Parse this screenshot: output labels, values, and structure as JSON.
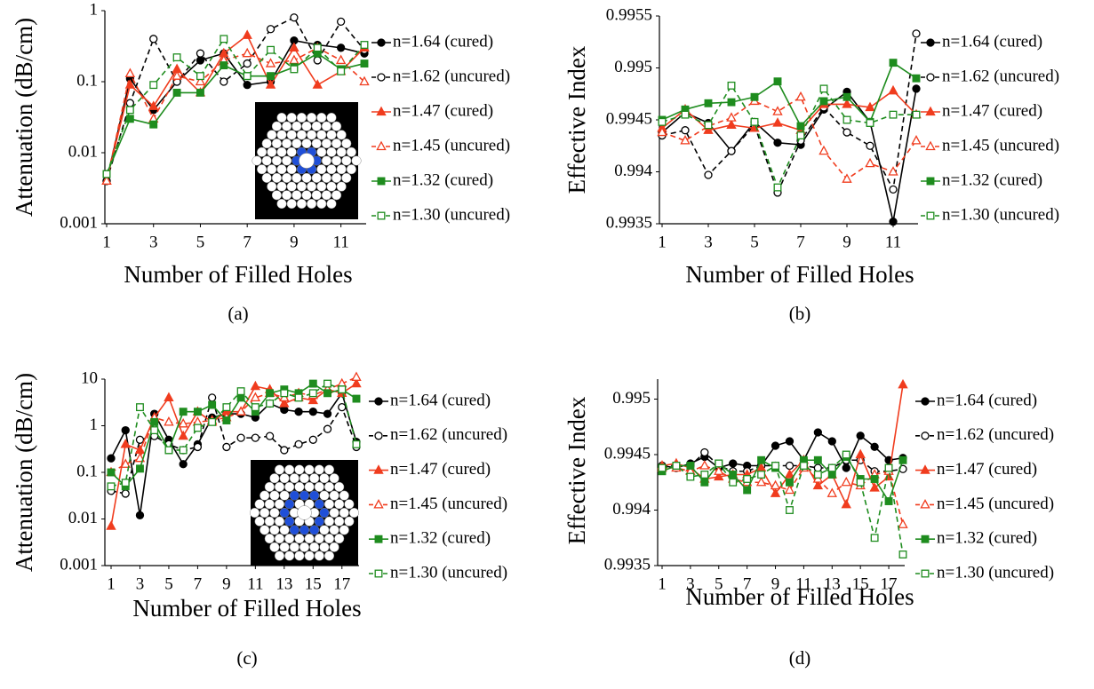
{
  "chart_data": [
    {
      "type": "line",
      "caption": "(a)",
      "x_label": "Number of Filled Holes",
      "y_label": "Attenuation (dB/cm)",
      "log_y": true,
      "x": [
        1,
        2,
        3,
        4,
        5,
        6,
        7,
        8,
        9,
        10,
        11,
        12
      ],
      "xlim": [
        1,
        12
      ],
      "xticks": [
        1,
        3,
        5,
        7,
        9,
        11
      ],
      "ylim": [
        0.001,
        1
      ],
      "yticks": [
        0.001,
        0.01,
        0.1,
        1
      ],
      "series": [
        {
          "name": "n=1.64 (cured)",
          "color": "#000000",
          "dashed": false,
          "marker": "circle",
          "filled": true,
          "values": [
            0.004,
            0.11,
            0.04,
            0.1,
            0.2,
            0.25,
            0.09,
            0.1,
            0.38,
            0.33,
            0.3,
            0.25
          ]
        },
        {
          "name": "n=1.62 (uncured)",
          "color": "#000000",
          "dashed": true,
          "marker": "circle",
          "filled": false,
          "values": [
            0.004,
            0.05,
            0.4,
            0.1,
            0.25,
            0.1,
            0.18,
            0.55,
            0.8,
            0.2,
            0.7,
            0.28
          ]
        },
        {
          "name": "n=1.47 (cured)",
          "color": "#f03c1e",
          "dashed": false,
          "marker": "triangle",
          "filled": true,
          "values": [
            0.004,
            0.09,
            0.045,
            0.15,
            0.07,
            0.25,
            0.45,
            0.09,
            0.3,
            0.09,
            0.14,
            0.3
          ]
        },
        {
          "name": "n=1.45 (uncured)",
          "color": "#f03c1e",
          "dashed": true,
          "marker": "triangle",
          "filled": false,
          "values": [
            0.004,
            0.13,
            0.03,
            0.12,
            0.1,
            0.2,
            0.25,
            0.18,
            0.2,
            0.3,
            0.2,
            0.1
          ]
        },
        {
          "name": "n=1.32 (cured)",
          "color": "#1e8c1e",
          "dashed": false,
          "marker": "square",
          "filled": true,
          "values": [
            0.005,
            0.03,
            0.025,
            0.07,
            0.07,
            0.17,
            0.12,
            0.12,
            0.16,
            0.25,
            0.15,
            0.18
          ]
        },
        {
          "name": "n=1.30 (uncured)",
          "color": "#1e8c1e",
          "dashed": true,
          "marker": "square",
          "filled": false,
          "values": [
            0.005,
            0.04,
            0.09,
            0.22,
            0.12,
            0.4,
            0.12,
            0.28,
            0.15,
            0.3,
            0.14,
            0.33
          ]
        }
      ]
    },
    {
      "type": "line",
      "caption": "(b)",
      "x_label": "Number of Filled Holes",
      "y_label": "Effective Index",
      "log_y": false,
      "x": [
        1,
        2,
        3,
        4,
        5,
        6,
        7,
        8,
        9,
        10,
        11,
        12
      ],
      "xlim": [
        1,
        12
      ],
      "xticks": [
        1,
        3,
        5,
        7,
        9,
        11
      ],
      "ylim": [
        0.9935,
        0.9955
      ],
      "yticks": [
        0.9935,
        0.994,
        0.9945,
        0.995,
        0.9955
      ],
      "series": [
        {
          "name": "n=1.64 (cured)",
          "color": "#000000",
          "dashed": false,
          "marker": "circle",
          "filled": true,
          "values": [
            0.99438,
            0.99457,
            0.99447,
            0.9942,
            0.99448,
            0.99428,
            0.99426,
            0.9946,
            0.99477,
            0.99448,
            0.99352,
            0.9948
          ]
        },
        {
          "name": "n=1.62 (uncured)",
          "color": "#000000",
          "dashed": true,
          "marker": "circle",
          "filled": false,
          "values": [
            0.99435,
            0.9944,
            0.99397,
            0.9942,
            0.99445,
            0.9938,
            0.9943,
            0.99462,
            0.99438,
            0.99425,
            0.99383,
            0.99533
          ]
        },
        {
          "name": "n=1.47 (cured)",
          "color": "#f03c1e",
          "dashed": false,
          "marker": "triangle",
          "filled": true,
          "values": [
            0.99442,
            0.9946,
            0.9944,
            0.99445,
            0.99442,
            0.99447,
            0.9944,
            0.99465,
            0.99465,
            0.99462,
            0.99478,
            0.99455
          ]
        },
        {
          "name": "n=1.45 (uncured)",
          "color": "#f03c1e",
          "dashed": true,
          "marker": "triangle",
          "filled": false,
          "values": [
            0.99438,
            0.9943,
            0.99444,
            0.99452,
            0.99468,
            0.99458,
            0.99472,
            0.9942,
            0.99393,
            0.99408,
            0.994,
            0.9943
          ]
        },
        {
          "name": "n=1.32 (cured)",
          "color": "#1e8c1e",
          "dashed": false,
          "marker": "square",
          "filled": true,
          "values": [
            0.9945,
            0.9946,
            0.99466,
            0.99467,
            0.99472,
            0.99487,
            0.99444,
            0.99468,
            0.99472,
            0.99448,
            0.99505,
            0.9949
          ]
        },
        {
          "name": "n=1.30 (uncured)",
          "color": "#1e8c1e",
          "dashed": true,
          "marker": "square",
          "filled": false,
          "values": [
            0.99448,
            0.99455,
            0.99445,
            0.99483,
            0.99448,
            0.99385,
            0.99435,
            0.9948,
            0.9945,
            0.99447,
            0.99455,
            0.99455
          ]
        }
      ]
    },
    {
      "type": "line",
      "caption": "(c)",
      "x_label": "Number of Filled Holes",
      "y_label": "Attenuation (dB/cm)",
      "log_y": true,
      "x": [
        1,
        2,
        3,
        4,
        5,
        6,
        7,
        8,
        9,
        10,
        11,
        12,
        13,
        14,
        15,
        16,
        17,
        18
      ],
      "xlim": [
        1,
        18
      ],
      "xticks": [
        1,
        3,
        5,
        7,
        9,
        11,
        13,
        15,
        17
      ],
      "ylim": [
        0.001,
        10
      ],
      "yticks": [
        0.001,
        0.01,
        0.1,
        1,
        10
      ],
      "series": [
        {
          "name": "n=1.64 (cured)",
          "color": "#000000",
          "dashed": false,
          "marker": "circle",
          "filled": true,
          "values": [
            0.2,
            0.8,
            0.012,
            1.8,
            0.5,
            0.15,
            0.4,
            1.5,
            1.8,
            1.8,
            1.5,
            3,
            2.2,
            2,
            2,
            1.8,
            5,
            0.45
          ]
        },
        {
          "name": "n=1.62 (uncured)",
          "color": "#000000",
          "dashed": true,
          "marker": "circle",
          "filled": false,
          "values": [
            0.04,
            0.035,
            0.5,
            0.6,
            0.4,
            0.3,
            0.35,
            4,
            0.35,
            0.55,
            0.55,
            0.6,
            0.3,
            0.4,
            0.5,
            0.85,
            2.5,
            0.35
          ]
        },
        {
          "name": "n=1.47 (cured)",
          "color": "#f03c1e",
          "dashed": false,
          "marker": "triangle",
          "filled": true,
          "values": [
            0.007,
            0.4,
            0.3,
            1.5,
            4,
            0.6,
            2,
            1.2,
            2,
            2,
            7,
            6,
            3,
            4,
            3.5,
            6,
            5,
            8
          ]
        },
        {
          "name": "n=1.45 (uncured)",
          "color": "#f03c1e",
          "dashed": true,
          "marker": "triangle",
          "filled": false,
          "values": [
            0.1,
            0.15,
            0.2,
            1.5,
            1.2,
            1.1,
            1.2,
            1.3,
            1.5,
            2,
            4,
            5,
            4,
            5,
            4.5,
            6,
            8,
            11
          ]
        },
        {
          "name": "n=1.32 (cured)",
          "color": "#1e8c1e",
          "dashed": false,
          "marker": "square",
          "filled": true,
          "values": [
            0.1,
            0.05,
            0.12,
            1.2,
            0.3,
            2,
            2,
            2.8,
            1.3,
            4,
            2,
            5,
            6,
            5,
            8,
            5,
            6,
            3.8
          ]
        },
        {
          "name": "n=1.30 (uncured)",
          "color": "#1e8c1e",
          "dashed": true,
          "marker": "square",
          "filled": false,
          "values": [
            0.05,
            0.06,
            2.5,
            0.8,
            0.3,
            0.3,
            0.9,
            1.2,
            2.5,
            5.5,
            2.5,
            3,
            5,
            4,
            5,
            8,
            6,
            0.4
          ]
        }
      ]
    },
    {
      "type": "line",
      "caption": "(d)",
      "x_label": "Number of Filled Holes",
      "y_label": "Effective Index",
      "log_y": false,
      "x": [
        1,
        2,
        3,
        4,
        5,
        6,
        7,
        8,
        9,
        10,
        11,
        12,
        13,
        14,
        15,
        16,
        17,
        18
      ],
      "xlim": [
        1,
        18
      ],
      "xticks": [
        1,
        3,
        5,
        7,
        9,
        11,
        13,
        15,
        17
      ],
      "ylim": [
        0.9935,
        0.99518
      ],
      "yticks": [
        0.9935,
        0.994,
        0.9945,
        0.995
      ],
      "series": [
        {
          "name": "n=1.64 (cured)",
          "color": "#000000",
          "dashed": false,
          "marker": "circle",
          "filled": true,
          "values": [
            0.9944,
            0.99438,
            0.99442,
            0.99448,
            0.99438,
            0.99442,
            0.9944,
            0.9944,
            0.99458,
            0.99462,
            0.99445,
            0.9947,
            0.99462,
            0.99438,
            0.99467,
            0.99457,
            0.99445,
            0.99447
          ]
        },
        {
          "name": "n=1.62 (uncured)",
          "color": "#000000",
          "dashed": true,
          "marker": "circle",
          "filled": false,
          "values": [
            0.9944,
            0.9944,
            0.9944,
            0.99452,
            0.9944,
            0.99435,
            0.99435,
            0.9944,
            0.9944,
            0.9944,
            0.9944,
            0.99438,
            0.99438,
            0.99445,
            0.99445,
            0.99435,
            0.99435,
            0.99437
          ]
        },
        {
          "name": "n=1.47 (cured)",
          "color": "#f03c1e",
          "dashed": false,
          "marker": "triangle",
          "filled": true,
          "values": [
            0.9944,
            0.99442,
            0.99438,
            0.99428,
            0.9943,
            0.99432,
            0.99432,
            0.99438,
            0.99415,
            0.99432,
            0.99445,
            0.99422,
            0.99432,
            0.99405,
            0.9945,
            0.9942,
            0.9943,
            0.99513
          ]
        },
        {
          "name": "n=1.45 (uncured)",
          "color": "#f03c1e",
          "dashed": true,
          "marker": "triangle",
          "filled": false,
          "values": [
            0.99438,
            0.99438,
            0.99435,
            0.9944,
            0.99435,
            0.99428,
            0.99425,
            0.99425,
            0.99422,
            0.99418,
            0.99438,
            0.99428,
            0.99415,
            0.99425,
            0.99422,
            0.99432,
            0.99435,
            0.99387
          ]
        },
        {
          "name": "n=1.32 (cured)",
          "color": "#1e8c1e",
          "dashed": false,
          "marker": "square",
          "filled": true,
          "values": [
            0.99435,
            0.9944,
            0.9944,
            0.99425,
            0.99442,
            0.99432,
            0.99418,
            0.99445,
            0.99438,
            0.99425,
            0.99445,
            0.99445,
            0.99432,
            0.99448,
            0.99428,
            0.99428,
            0.99408,
            0.99445
          ]
        },
        {
          "name": "n=1.30 (uncured)",
          "color": "#1e8c1e",
          "dashed": true,
          "marker": "square",
          "filled": false,
          "values": [
            0.99438,
            0.9944,
            0.9943,
            0.99432,
            0.99442,
            0.99425,
            0.99428,
            0.99432,
            0.9944,
            0.994,
            0.9944,
            0.99432,
            0.99438,
            0.9945,
            0.99425,
            0.99375,
            0.99438,
            0.9936
          ]
        }
      ]
    }
  ]
}
